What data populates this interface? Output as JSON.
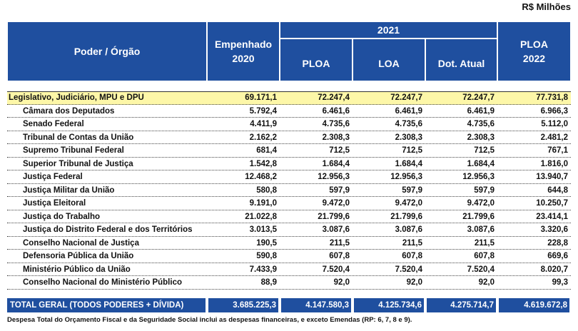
{
  "unit": "R$ Milhões",
  "table": {
    "columns": {
      "name": "Poder / Órgão",
      "first": [
        "Empenhado",
        "2020"
      ],
      "group": "2021",
      "sub": [
        "PLOA",
        "LOA",
        "Dot. Atual"
      ],
      "last": [
        "PLOA",
        "2022"
      ]
    },
    "group_row": [
      "Legislativo, Judiciário, MPU e DPU",
      "69.171,1",
      "72.247,4",
      "72.247,7",
      "72.247,7",
      "77.731,8"
    ],
    "rows": [
      [
        "Câmara dos Deputados",
        "5.792,4",
        "6.461,6",
        "6.461,9",
        "6.461,9",
        "6.966,3"
      ],
      [
        "Senado Federal",
        "4.411,9",
        "4.735,6",
        "4.735,6",
        "4.735,6",
        "5.112,0"
      ],
      [
        "Tribunal de Contas da União",
        "2.162,2",
        "2.308,3",
        "2.308,3",
        "2.308,3",
        "2.481,2"
      ],
      [
        "Supremo Tribunal Federal",
        "681,4",
        "712,5",
        "712,5",
        "712,5",
        "767,1"
      ],
      [
        "Superior Tribunal de Justiça",
        "1.542,8",
        "1.684,4",
        "1.684,4",
        "1.684,4",
        "1.816,0"
      ],
      [
        "Justiça Federal",
        "12.468,2",
        "12.956,3",
        "12.956,3",
        "12.956,3",
        "13.940,7"
      ],
      [
        "Justiça Militar da União",
        "580,8",
        "597,9",
        "597,9",
        "597,9",
        "644,8"
      ],
      [
        "Justiça Eleitoral",
        "9.191,0",
        "9.472,0",
        "9.472,0",
        "9.472,0",
        "10.250,7"
      ],
      [
        "Justiça do Trabalho",
        "21.022,8",
        "21.799,6",
        "21.799,6",
        "21.799,6",
        "23.414,1"
      ],
      [
        "Justiça do Distrito Federal e dos Territórios",
        "3.013,5",
        "3.087,6",
        "3.087,6",
        "3.087,6",
        "3.320,6"
      ],
      [
        "Conselho Nacional de Justiça",
        "190,5",
        "211,5",
        "211,5",
        "211,5",
        "228,8"
      ],
      [
        "Defensoria Pública da União",
        "590,8",
        "607,8",
        "607,8",
        "607,8",
        "669,6"
      ],
      [
        "Ministério Público da União",
        "7.433,9",
        "7.520,4",
        "7.520,4",
        "7.520,4",
        "8.020,7"
      ],
      [
        "Conselho Nacional do Ministério Público",
        "88,9",
        "92,0",
        "92,0",
        "92,0",
        "99,3"
      ]
    ],
    "total": [
      "TOTAL GERAL (TODOS PODERES + DÍVIDA)",
      "3.685.225,3",
      "4.147.580,3",
      "4.125.734,6",
      "4.275.714,7",
      "4.619.672,8"
    ]
  },
  "footnote": "Despesa Total do Orçamento Fiscal e da Seguridade Social inclui as despesas financeiras, e exceto Emendas (RP: 6, 7, 8 e 9)."
}
